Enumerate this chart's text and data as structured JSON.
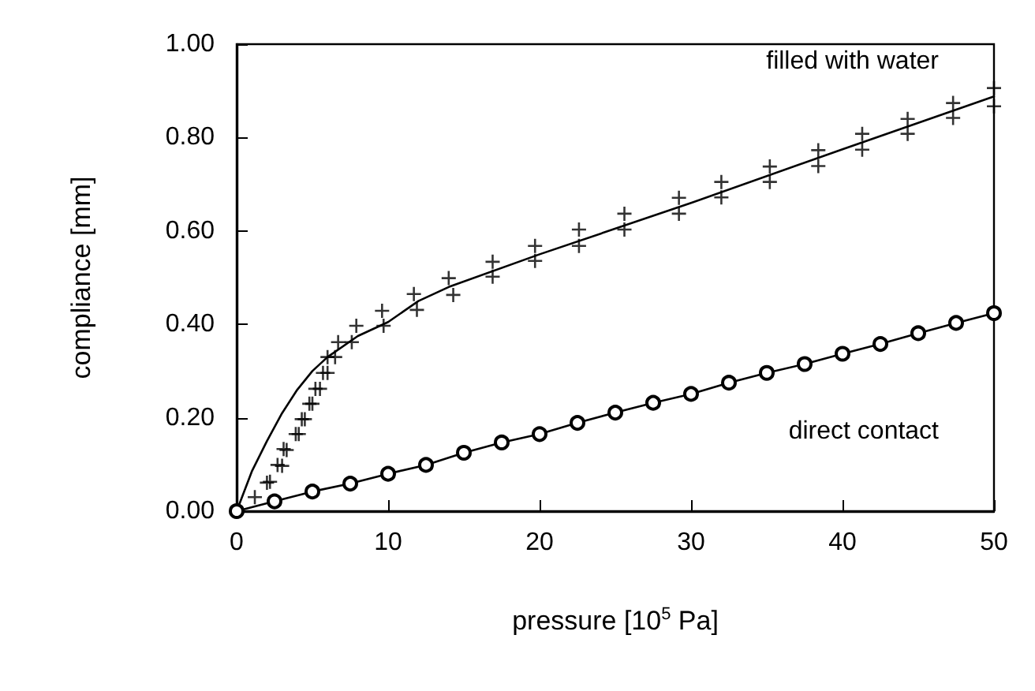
{
  "chart_data": {
    "type": "scatter",
    "xlabel": "pressure [10$^{5}$ Pa]",
    "ylabel": "compliance [mm]",
    "xlim": [
      0,
      50
    ],
    "ylim": [
      0,
      1
    ],
    "xticks": [
      0,
      10,
      20,
      30,
      40,
      50
    ],
    "yticks": [
      {
        "value": 0,
        "label": "0.00"
      },
      {
        "value": 0.2,
        "label": "0.20"
      },
      {
        "value": 0.4,
        "label": "0.40"
      },
      {
        "value": 0.6,
        "label": "0.60"
      },
      {
        "value": 0.8,
        "label": "0.80"
      },
      {
        "value": 1,
        "label": "1.00"
      }
    ],
    "grid": false,
    "legend": false,
    "series": [
      {
        "marker": "cross",
        "color": "#000000",
        "x": [
          1.2,
          2.0,
          2.2,
          2.7,
          3.0,
          3.1,
          3.3,
          3.9,
          4.1,
          4.3,
          4.5,
          4.8,
          5.0,
          5.2,
          5.5,
          5.7,
          6.0,
          6.0,
          6.5,
          6.7,
          7.6,
          7.9,
          9.7,
          9.6,
          11.9,
          11.7,
          14.3,
          14.0,
          16.9,
          16.9,
          19.7,
          19.7,
          22.6,
          22.6,
          25.6,
          25.6,
          29.2,
          29.2,
          32.0,
          32.0,
          35.2,
          35.2,
          38.4,
          38.4,
          41.3,
          41.3,
          44.3,
          44.3,
          47.3,
          47.3,
          50,
          50
        ],
        "values": [
          0.03,
          0.061,
          0.063,
          0.099,
          0.097,
          0.133,
          0.131,
          0.165,
          0.165,
          0.197,
          0.197,
          0.23,
          0.23,
          0.262,
          0.262,
          0.296,
          0.296,
          0.33,
          0.33,
          0.362,
          0.362,
          0.397,
          0.397,
          0.429,
          0.431,
          0.465,
          0.463,
          0.499,
          0.502,
          0.534,
          0.536,
          0.568,
          0.568,
          0.603,
          0.603,
          0.637,
          0.637,
          0.671,
          0.672,
          0.705,
          0.705,
          0.738,
          0.739,
          0.773,
          0.774,
          0.808,
          0.808,
          0.84,
          0.842,
          0.874,
          0.867,
          0.906
        ]
      },
      {
        "type": "line",
        "name": "filled with water",
        "marker": "none",
        "line_style": "solid",
        "color": "#000000",
        "x": [
          0,
          1,
          2,
          3,
          4,
          5,
          6,
          8,
          10,
          12,
          14,
          20,
          30,
          40,
          50
        ],
        "values": [
          0,
          0.085,
          0.15,
          0.21,
          0.26,
          0.3,
          0.33,
          0.375,
          0.405,
          0.45,
          0.48,
          0.55,
          0.66,
          0.775,
          0.888
        ]
      },
      {
        "type": "line",
        "name": "direct contact",
        "marker": "circle",
        "line_style": "solid",
        "color": "#000000",
        "x": [
          0,
          2.5,
          5,
          7.5,
          10,
          12.5,
          15,
          17.5,
          20,
          22.5,
          25,
          27.5,
          30,
          32.5,
          35,
          37.5,
          40,
          42.5,
          45,
          47.5,
          50
        ],
        "values": [
          0,
          0.021,
          0.042,
          0.059,
          0.08,
          0.099,
          0.125,
          0.147,
          0.165,
          0.189,
          0.211,
          0.232,
          0.251,
          0.275,
          0.296,
          0.315,
          0.337,
          0.358,
          0.381,
          0.403,
          0.424
        ]
      }
    ]
  }
}
